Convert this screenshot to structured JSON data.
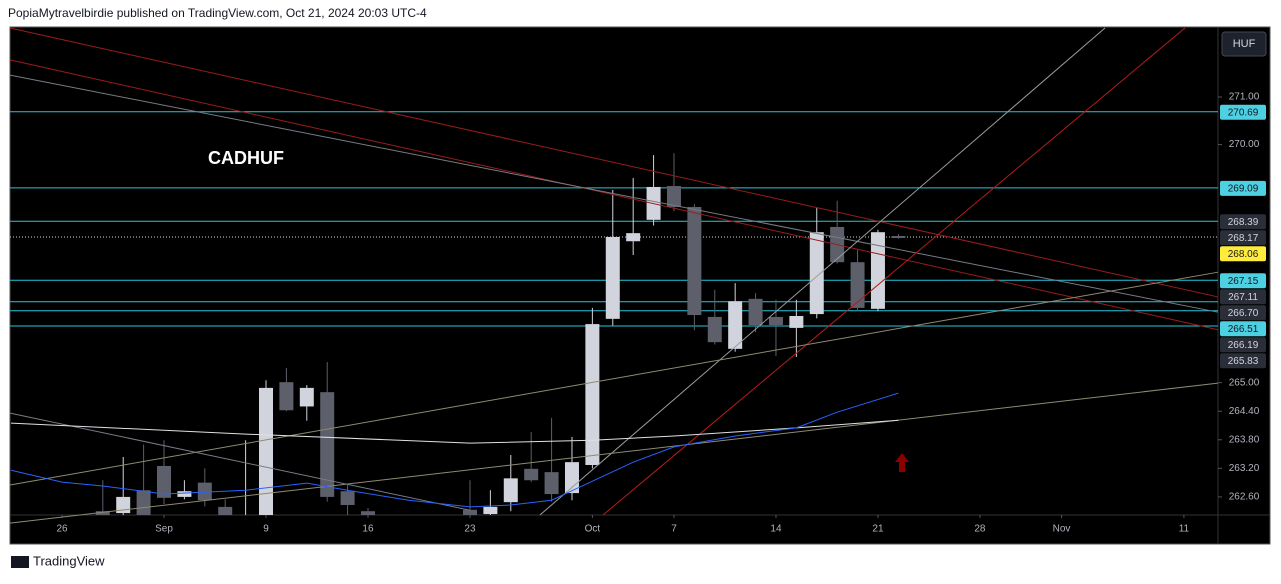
{
  "header": "PopiaMytravelbirdie published on TradingView.com, Oct 21, 2024 20:03 UTC-4",
  "footer": "TradingView",
  "currency": "HUF",
  "chart_data": {
    "type": "candlestick",
    "title": "CADHUF",
    "x": [
      2,
      3,
      4,
      5,
      6,
      7,
      8,
      9,
      10,
      11,
      12,
      13,
      14,
      15,
      20,
      21,
      22,
      23,
      24,
      25,
      26,
      27,
      28,
      29,
      30,
      31,
      32,
      33,
      34,
      35,
      36,
      37,
      38,
      39,
      40,
      41
    ],
    "open": [
      262.3,
      262.26,
      262.74,
      263.25,
      262.6,
      262.9,
      262.39,
      262.1,
      262.2,
      265.01,
      264.5,
      264.8,
      262.72,
      262.3,
      262.33,
      262.24,
      262.49,
      263.19,
      263.12,
      262.68,
      263.27,
      266.34,
      267.97,
      268.42,
      269.13,
      268.69,
      266.38,
      265.71,
      266.76,
      266.38,
      266.15,
      266.44,
      268.27,
      267.53,
      266.55,
      268.08
    ],
    "high": [
      262.95,
      263.44,
      263.7,
      263.79,
      262.95,
      263.2,
      262.55,
      263.79,
      265.05,
      265.31,
      264.95,
      265.43,
      262.85,
      262.37,
      262.95,
      262.74,
      263.48,
      263.96,
      264.26,
      263.86,
      266.57,
      269.05,
      269.3,
      269.78,
      269.82,
      268.75,
      266.95,
      267.09,
      266.88,
      266.74,
      266.74,
      268.67,
      268.82,
      267.79,
      268.21,
      268.12
    ],
    "low": [
      262.15,
      262.2,
      262.1,
      262.45,
      262.55,
      262.4,
      262.1,
      262.0,
      262.1,
      264.4,
      264.2,
      262.5,
      262.2,
      262.0,
      262.1,
      262.1,
      262.3,
      262.91,
      262.5,
      262.53,
      263.2,
      266.2,
      267.68,
      268.3,
      268.6,
      266.1,
      265.8,
      265.65,
      266.06,
      265.56,
      265.54,
      266.35,
      267.5,
      266.5,
      266.5,
      268.02
    ],
    "close": [
      262.2,
      262.6,
      262.15,
      262.58,
      262.72,
      262.53,
      262.2,
      262.15,
      264.89,
      264.42,
      264.89,
      262.6,
      262.43,
      262.1,
      262.2,
      262.39,
      262.99,
      262.95,
      262.66,
      263.33,
      266.23,
      268.06,
      268.14,
      269.11,
      268.69,
      266.42,
      265.85,
      266.71,
      266.21,
      266.21,
      266.4,
      268.16,
      267.53,
      266.57,
      268.16,
      268.06
    ],
    "up_color": "#d1d4dc",
    "down_color": "#5d606b",
    "xlim": [
      -2.55,
      56.67
    ],
    "ylim": [
      262.22,
      272.47
    ],
    "xticks": [
      {
        "value": 0,
        "label": "26"
      },
      {
        "value": 5,
        "label": "Sep"
      },
      {
        "value": 10,
        "label": "9"
      },
      {
        "value": 15,
        "label": "16"
      },
      {
        "value": 20,
        "label": "23"
      },
      {
        "value": 26,
        "label": "Oct"
      },
      {
        "value": 30,
        "label": "7"
      },
      {
        "value": 35,
        "label": "14"
      },
      {
        "value": 40,
        "label": "21"
      },
      {
        "value": 45,
        "label": "28"
      },
      {
        "value": 49,
        "label": "Nov"
      },
      {
        "value": 55,
        "label": "11"
      }
    ],
    "yticks": [
      {
        "value": 271,
        "label": "271.00"
      },
      {
        "value": 270,
        "label": "270.00"
      },
      {
        "value": 265,
        "label": "265.00"
      },
      {
        "value": 264.4,
        "label": "264.40"
      },
      {
        "value": 263.8,
        "label": "263.80"
      },
      {
        "value": 263.2,
        "label": "263.20"
      },
      {
        "value": 262.6,
        "label": "262.60"
      }
    ],
    "levels": [
      {
        "value": 270.69,
        "label": "270.69",
        "color": "#4dd0e1",
        "line": true
      },
      {
        "value": 269.09,
        "label": "269.09",
        "color": "#4dd0e1",
        "line": true
      },
      {
        "value": 268.39,
        "label": "268.39",
        "color": "#2a2e39",
        "line": true
      },
      {
        "value": 268.17,
        "label": "268.17",
        "color": "#2a2e39",
        "line": false
      },
      {
        "value": 268.06,
        "label": "268.06",
        "color": "#ffeb3b",
        "line": false
      },
      {
        "value": 267.15,
        "label": "267.15",
        "color": "#4dd0e1",
        "line": true
      },
      {
        "value": 267.11,
        "label": "267.11",
        "color": "#2a2e39",
        "line": false
      },
      {
        "value": 266.7,
        "label": "266.70",
        "color": "#2a2e39",
        "line": true
      },
      {
        "value": 266.51,
        "label": "266.51",
        "color": "#4dd0e1",
        "line": true
      },
      {
        "value": 266.19,
        "label": "266.19",
        "color": "#2a2e39",
        "line": true
      },
      {
        "value": 265.83,
        "label": "265.83",
        "color": "#2a2e39",
        "line": false
      }
    ],
    "current_price": 268.06,
    "overlays": [
      {
        "color": "#9c1c1c",
        "x": [
          -2.55,
          56.67
        ],
        "y": [
          272.45,
          266.8
        ]
      },
      {
        "color": "#9c1c1c",
        "x": [
          -2.55,
          56.67
        ],
        "y": [
          271.78,
          266.11
        ]
      },
      {
        "color": "#787b86",
        "x": [
          -2.55,
          56.67
        ],
        "y": [
          271.46,
          266.48
        ]
      },
      {
        "color": "#9c9c9c",
        "x": [
          23.43,
          51.13
        ],
        "y": [
          262.22,
          272.45
        ]
      },
      {
        "color": "#b71c1c",
        "x": [
          26.52,
          55.05
        ],
        "y": [
          262.22,
          272.45
        ]
      },
      {
        "color": "#8f8a72",
        "x": [
          -2.55,
          56.67
        ],
        "y": [
          262.85,
          267.32
        ]
      },
      {
        "color": "#8f8a72",
        "x": [
          -2.55,
          56.67
        ],
        "y": [
          262.05,
          264.99
        ]
      },
      {
        "color": "#787b86",
        "x": [
          -2.55,
          20
        ],
        "y": [
          264.36,
          262.32
        ]
      },
      {
        "color": "#e0e0e0",
        "x": [
          -2.5,
          9,
          20,
          26,
          30,
          36,
          41
        ],
        "y": [
          264.15,
          263.92,
          263.73,
          263.79,
          263.88,
          264.05,
          264.21
        ]
      },
      {
        "color": "#2962ff",
        "x": [
          -2.5,
          0,
          2,
          5,
          9,
          12,
          14,
          17,
          20,
          22,
          24,
          26,
          28,
          30,
          33,
          36,
          38,
          41
        ],
        "y": [
          263.16,
          262.91,
          262.83,
          262.66,
          262.74,
          262.89,
          262.74,
          262.53,
          262.39,
          262.43,
          262.53,
          262.93,
          263.33,
          263.65,
          263.88,
          264.05,
          264.38,
          264.78
        ]
      }
    ]
  }
}
